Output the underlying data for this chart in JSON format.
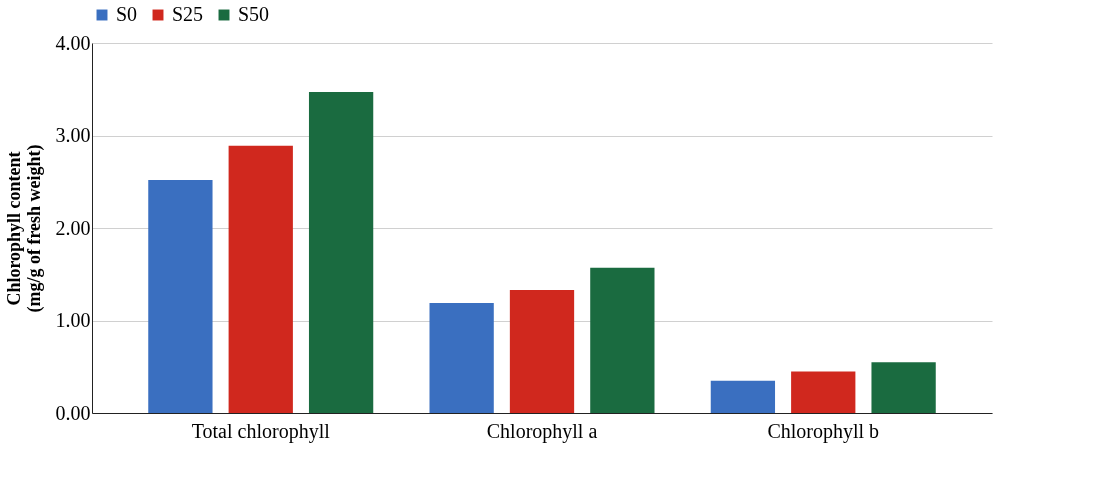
{
  "chart_data": {
    "type": "bar",
    "categories": [
      "Total chlorophyll",
      "Chlorophyll a",
      "Chlorophyll b"
    ],
    "ylabel": "Chlorophyll content\n(mg/g of fresh weight)",
    "series": [
      {
        "name": "S0",
        "color": "#3a6fc0",
        "values": [
          2.52,
          1.19,
          0.35
        ]
      },
      {
        "name": "S25",
        "color": "#d0281e",
        "values": [
          2.89,
          1.33,
          0.45
        ]
      },
      {
        "name": "S50",
        "color": "#1a6b40",
        "values": [
          3.47,
          1.57,
          0.55
        ]
      }
    ],
    "ylim": [
      0,
      4
    ],
    "yticks": [
      {
        "value": 0,
        "label": "0.00"
      },
      {
        "value": 1,
        "label": "1.00"
      },
      {
        "value": 2,
        "label": "2.00"
      },
      {
        "value": 3,
        "label": "3.00"
      },
      {
        "value": 4,
        "label": "4.00"
      }
    ],
    "grid": "y",
    "legend": "top"
  }
}
